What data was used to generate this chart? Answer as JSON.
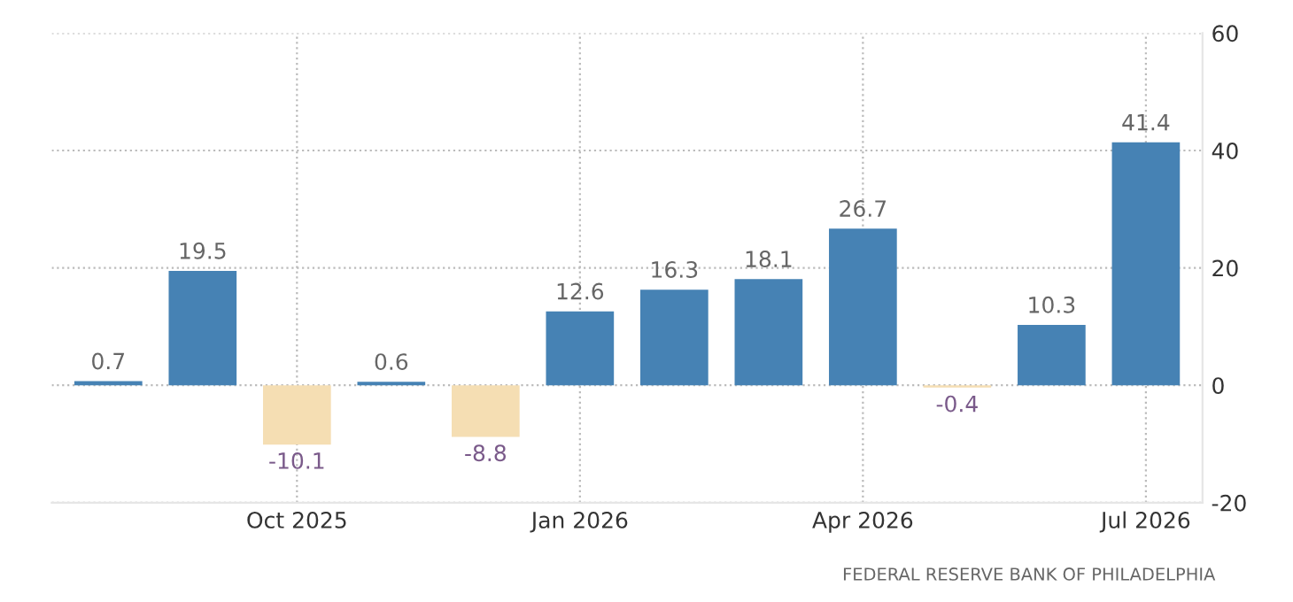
{
  "chart_data": {
    "type": "bar",
    "categories": [
      null,
      null,
      "Oct 2025",
      null,
      null,
      "Jan 2026",
      null,
      null,
      "Apr 2026",
      null,
      null,
      "Jul 2026"
    ],
    "values": [
      0.7,
      19.5,
      -10.1,
      0.6,
      -8.8,
      12.6,
      16.3,
      18.1,
      26.7,
      -0.4,
      10.3,
      41.4
    ],
    "colors": [
      "#4682b4",
      "#4682b4",
      "#f5deb3",
      "#4682b4",
      "#f5deb3",
      "#4682b4",
      "#4682b4",
      "#4682b4",
      "#4682b4",
      "#f5deb3",
      "#4682b4",
      "#4682b4"
    ],
    "ylim": [
      -20,
      60
    ],
    "yticks": [
      -20,
      0,
      20,
      40,
      60
    ],
    "grid": true,
    "data_labels": true,
    "annotations": [
      "FEDERAL RESERVE BANK OF PHILADELPHIA"
    ]
  }
}
